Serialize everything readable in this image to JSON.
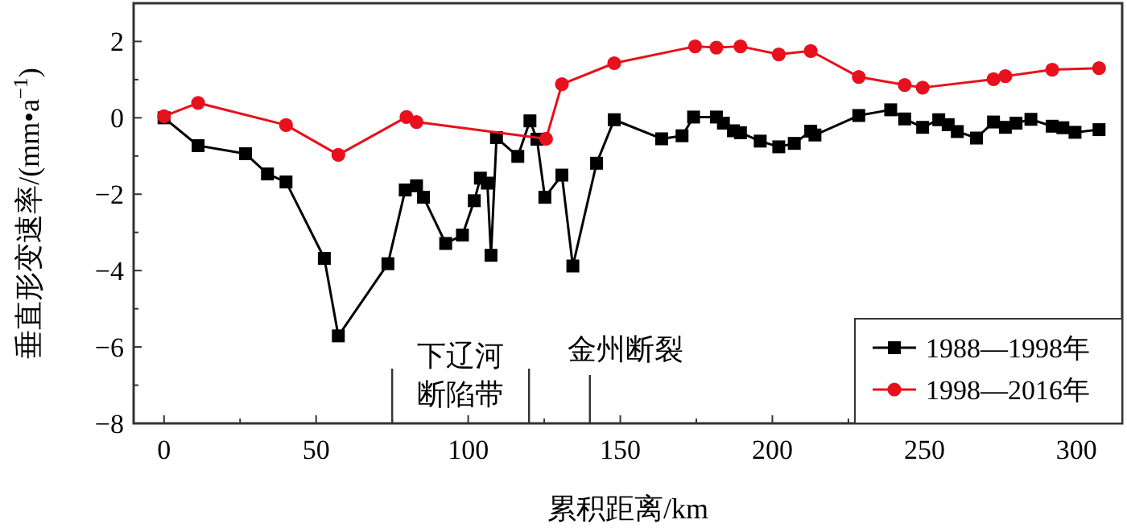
{
  "chart_data": {
    "type": "line",
    "xlabel": "累积距离/km",
    "ylabel": "垂直形变速率/(mm•a$^{−1}$)",
    "xlim": [
      -10,
      315
    ],
    "ylim": [
      -8,
      3
    ],
    "xticks": [
      0,
      {
        "value": 25,
        "label": null
      },
      50,
      {
        "value": 75,
        "label": null
      },
      100,
      {
        "value": 125,
        "label": null
      },
      150,
      {
        "value": 175,
        "label": null
      },
      200,
      {
        "value": 225,
        "label": null
      },
      250,
      {
        "value": 275,
        "label": null
      },
      300
    ],
    "yticks": [
      {
        "value": -8,
        "label": "−8"
      },
      {
        "value": -7,
        "label": null
      },
      {
        "value": -6,
        "label": "−6"
      },
      {
        "value": -5,
        "label": null
      },
      {
        "value": -4,
        "label": "−4"
      },
      {
        "value": -3,
        "label": null
      },
      {
        "value": -2,
        "label": "−2"
      },
      {
        "value": -1,
        "label": null
      },
      0,
      {
        "value": 1,
        "label": null
      },
      2
    ],
    "grid": false,
    "legend": "bottom right",
    "line_style": "solid",
    "series": [
      {
        "name": "1988—1998年",
        "color": "#000000",
        "marker": "square",
        "x": [
          0,
          11.2,
          26.8,
          34,
          40.1,
          52.7,
          57.3,
          73.6,
          79.3,
          83,
          85.3,
          92.6,
          98.1,
          102,
          104,
          106.3,
          107.5,
          109.3,
          116.3,
          120.3,
          122.6,
          125.2,
          130.8,
          134.4,
          142.2,
          148,
          163.6,
          170.3,
          174.1,
          181.6,
          183.9,
          187.2,
          189.5,
          196,
          202.1,
          207.2,
          212.6,
          214,
          228.4,
          238.9,
          243.5,
          249.4,
          254.7,
          257.8,
          260.8,
          267.1,
          272.7,
          276.6,
          280.1,
          285,
          292,
          295.5,
          299.5,
          307.4
        ],
        "values": [
          0,
          -0.73,
          -0.94,
          -1.47,
          -1.68,
          -3.68,
          -5.71,
          -3.82,
          -1.89,
          -1.78,
          -2.08,
          -3.29,
          -3.07,
          -2.17,
          -1.58,
          -1.71,
          -3.6,
          -0.52,
          -1.01,
          -0.08,
          -0.56,
          -2.08,
          -1.5,
          -3.88,
          -1.19,
          -0.05,
          -0.55,
          -0.47,
          0.02,
          0.02,
          -0.14,
          -0.34,
          -0.39,
          -0.61,
          -0.76,
          -0.67,
          -0.35,
          -0.45,
          0.06,
          0.21,
          -0.03,
          -0.25,
          -0.05,
          -0.18,
          -0.36,
          -0.53,
          -0.11,
          -0.25,
          -0.14,
          -0.04,
          -0.22,
          -0.26,
          -0.38,
          -0.31
        ]
      },
      {
        "name": "1998—2016年",
        "color": "#e8101c",
        "marker": "circle",
        "x": [
          0,
          11.2,
          40.1,
          57.3,
          79.7,
          83,
          125.6,
          130.8,
          148,
          174.6,
          181.6,
          189.5,
          202.1,
          212.6,
          228.4,
          243.5,
          249.4,
          272.7,
          276.6,
          292,
          307.4
        ],
        "values": [
          0.04,
          0.39,
          -0.19,
          -0.97,
          0.02,
          -0.11,
          -0.55,
          0.88,
          1.43,
          1.87,
          1.84,
          1.87,
          1.66,
          1.75,
          1.07,
          0.86,
          0.79,
          1.01,
          1.09,
          1.26,
          1.3
        ]
      }
    ],
    "ref_lines": [
      {
        "axis": "x",
        "value": 75
      },
      {
        "axis": "x",
        "value": 120
      },
      {
        "axis": "x",
        "value": 140,
        "label": "金州断裂"
      }
    ],
    "annotations": [
      "下辽河断陷带"
    ]
  }
}
